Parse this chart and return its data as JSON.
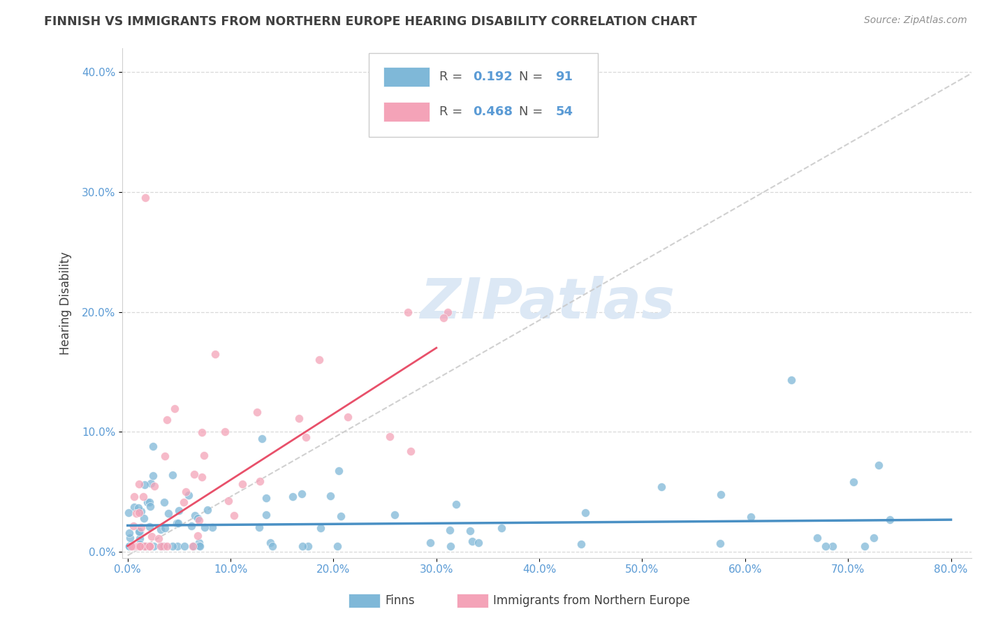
{
  "title": "FINNISH VS IMMIGRANTS FROM NORTHERN EUROPE HEARING DISABILITY CORRELATION CHART",
  "source": "Source: ZipAtlas.com",
  "ylabel": "Hearing Disability",
  "xlim": [
    -0.005,
    0.82
  ],
  "ylim": [
    -0.005,
    0.42
  ],
  "yticks": [
    0.0,
    0.1,
    0.2,
    0.3,
    0.4
  ],
  "xticks": [
    0.0,
    0.1,
    0.2,
    0.3,
    0.4,
    0.5,
    0.6,
    0.7,
    0.8
  ],
  "legend_R1": "0.192",
  "legend_N1": "91",
  "legend_R2": "0.468",
  "legend_N2": "54",
  "color_finns": "#7fb8d8",
  "color_immigrants": "#f4a3b8",
  "color_finn_line": "#4a90c4",
  "color_immigrant_line": "#e8506a",
  "color_dashed_line": "#c8c8c8",
  "color_title": "#404040",
  "color_axis_labels": "#5b9bd5",
  "color_source": "#909090",
  "background_color": "#ffffff",
  "watermark_text": "ZIPatlas",
  "watermark_color": "#dce8f5",
  "finn_slope": 0.006,
  "finn_intercept": 0.022,
  "imm_slope": 0.55,
  "imm_intercept": 0.005
}
